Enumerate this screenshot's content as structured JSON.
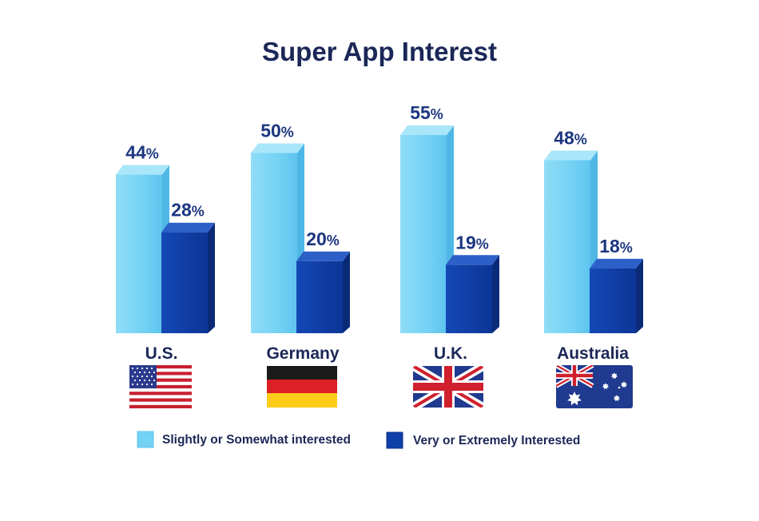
{
  "chart_data": {
    "type": "bar",
    "title": "Super App Interest",
    "categories": [
      "U.S.",
      "Germany",
      "U.K.",
      "Australia"
    ],
    "flags": [
      "us-flag-icon",
      "germany-flag-icon",
      "uk-flag-icon",
      "australia-flag-icon"
    ],
    "value_suffix": "%",
    "series": [
      {
        "name": "Slightly or Somewhat interested",
        "values": [
          44,
          50,
          55,
          48
        ],
        "color": "#6fd0f4"
      },
      {
        "name": "Very or Extremely Interested",
        "values": [
          28,
          20,
          19,
          18
        ],
        "color": "#0f3fa8"
      }
    ],
    "ylim": [
      0,
      100
    ],
    "grid": false,
    "legend_position": "bottom"
  }
}
